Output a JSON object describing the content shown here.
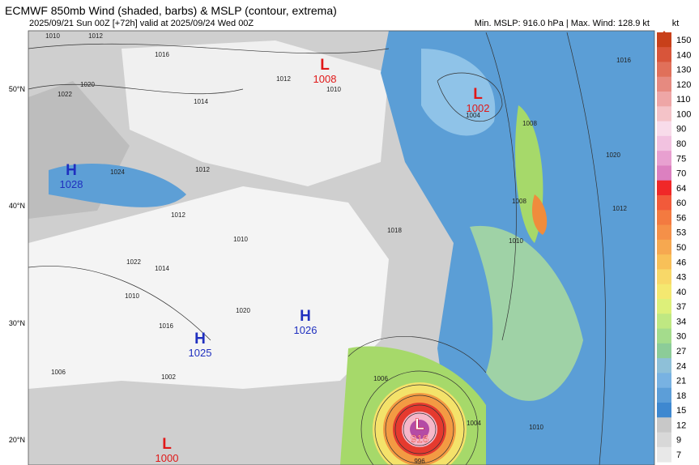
{
  "header": {
    "title": "ECMWF 850mb Wind (shaded, barbs) & MSLP (contour, extrema)",
    "subtitle": "2025/09/21 Sun 00Z [+72h] valid at 2025/09/24 Wed 00Z",
    "stats": "Min. MSLP: 916.0 hPa | Max. Wind: 128.9 kt"
  },
  "colorbar": {
    "unit": "kt",
    "ticks": [
      150,
      140,
      130,
      120,
      110,
      100,
      90,
      80,
      75,
      70,
      64,
      60,
      56,
      53,
      50,
      46,
      43,
      40,
      37,
      34,
      30,
      27,
      24,
      21,
      18,
      15,
      12,
      9,
      7
    ]
  },
  "latitudes": [
    "50°N",
    "40°N",
    "30°N",
    "20°N"
  ],
  "extrema": [
    {
      "type": "L",
      "value": "1008"
    },
    {
      "type": "L",
      "value": "1002"
    },
    {
      "type": "H",
      "value": "1028"
    },
    {
      "type": "H",
      "value": "1026"
    },
    {
      "type": "H",
      "value": "1025"
    },
    {
      "type": "L",
      "value": "916"
    },
    {
      "type": "L",
      "value": "1000"
    }
  ],
  "contour_labels": [
    "1010",
    "1012",
    "1016",
    "1020",
    "1022",
    "1012",
    "1010",
    "1014",
    "1024",
    "1012",
    "1012",
    "1010",
    "1018",
    "1022",
    "1014",
    "1010",
    "1020",
    "1016",
    "1002",
    "1006",
    "1004",
    "1008",
    "1008",
    "1010",
    "1016",
    "1012",
    "1020",
    "1006",
    "1004",
    "1010",
    "996"
  ]
}
